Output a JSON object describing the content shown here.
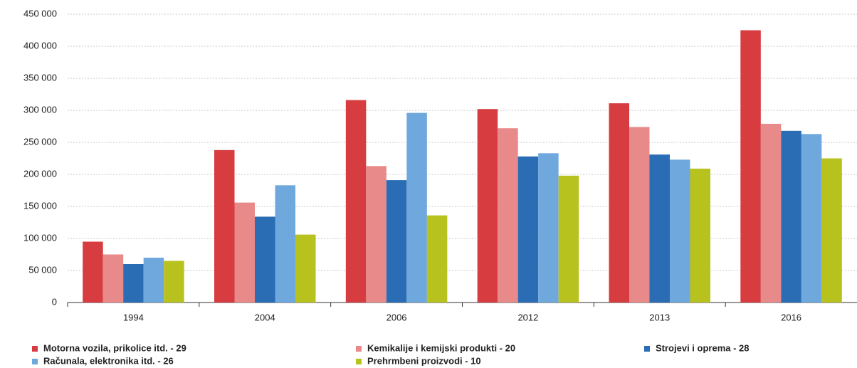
{
  "chart_data": {
    "type": "bar",
    "categories": [
      "1994",
      "2004",
      "2006",
      "2012",
      "2013",
      "2016"
    ],
    "series": [
      {
        "name": "Motorna vozila, prikolice itd. - 29",
        "color": "#d73c41",
        "values": [
          95000,
          238000,
          316000,
          302000,
          311000,
          425000
        ]
      },
      {
        "name": "Kemikalije i kemijski produkti - 20",
        "color": "#e8898a",
        "values": [
          75000,
          156000,
          213000,
          272000,
          274000,
          279000
        ]
      },
      {
        "name": "Strojevi i oprema - 28",
        "color": "#2a6db5",
        "values": [
          60000,
          134000,
          191000,
          228000,
          231000,
          268000
        ]
      },
      {
        "name": "Računala, elektronika itd. - 26",
        "color": "#6fa8dc",
        "values": [
          70000,
          183000,
          296000,
          233000,
          223000,
          263000
        ]
      },
      {
        "name": "Prehrmbeni proizvodi - 10",
        "color": "#b8c21f",
        "values": [
          65000,
          106000,
          136000,
          198000,
          209000,
          225000
        ]
      }
    ],
    "ylim": [
      0,
      450000
    ],
    "yticks": [
      0,
      {
        "value": 50000,
        "label": "50 000"
      },
      {
        "value": 100000,
        "label": "100 000"
      },
      {
        "value": 150000,
        "label": "150 000"
      },
      {
        "value": 200000,
        "label": "200 000"
      },
      {
        "value": 250000,
        "label": "250 000"
      },
      {
        "value": 300000,
        "label": "300 000"
      },
      {
        "value": 350000,
        "label": "350 000"
      },
      {
        "value": 400000,
        "label": "400 000"
      },
      {
        "value": 450000,
        "label": "450 000"
      }
    ],
    "grid": true
  }
}
